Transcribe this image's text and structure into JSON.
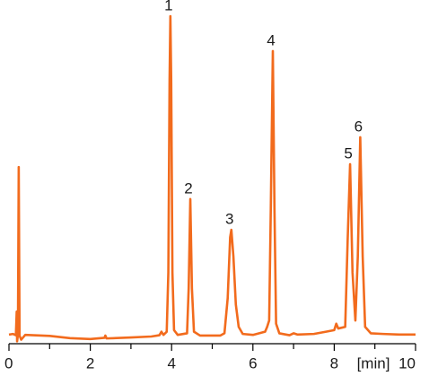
{
  "chart_data": {
    "type": "line",
    "xlabel": "[min]",
    "xlim": [
      0,
      10
    ],
    "xticks": [
      0,
      2,
      4,
      6,
      8,
      10
    ],
    "ylim": [
      -3,
      100
    ],
    "color": "#f26b1d",
    "x": [
      0,
      0.1,
      0.17,
      0.19,
      0.2,
      0.22,
      0.24,
      0.26,
      0.3,
      0.4,
      1.0,
      1.5,
      2.0,
      2.35,
      2.37,
      2.4,
      3.0,
      3.5,
      3.7,
      3.75,
      3.8,
      3.88,
      3.92,
      3.95,
      3.97,
      3.99,
      4.02,
      4.06,
      4.15,
      4.38,
      4.42,
      4.46,
      4.5,
      4.55,
      4.7,
      5.2,
      5.3,
      5.38,
      5.44,
      5.47,
      5.52,
      5.58,
      5.65,
      5.75,
      6.0,
      6.3,
      6.35,
      6.4,
      6.44,
      6.49,
      6.53,
      6.57,
      6.65,
      6.9,
      7.0,
      7.1,
      7.5,
      7.8,
      8.0,
      8.05,
      8.1,
      8.27,
      8.33,
      8.39,
      8.45,
      8.52,
      8.58,
      8.64,
      8.7,
      8.76,
      8.9,
      9.2,
      9.6,
      10
    ],
    "values": [
      0.6,
      0.8,
      0.4,
      7.8,
      -1.5,
      0.5,
      52.9,
      0.3,
      -1,
      0.5,
      0.2,
      -0.5,
      -0.8,
      -0.4,
      0.3,
      -0.6,
      -0.3,
      0,
      0.4,
      1.5,
      0.5,
      1.5,
      20,
      80,
      100,
      80,
      20,
      2,
      0.5,
      1,
      15,
      42.9,
      15,
      1.5,
      0.3,
      0.3,
      1,
      12,
      31,
      33.3,
      25,
      10,
      3,
      0.8,
      0.5,
      1.5,
      3,
      5,
      40,
      89.1,
      40,
      4,
      1,
      0.4,
      1,
      0.6,
      0.8,
      1.5,
      2,
      4,
      2.5,
      3,
      30,
      53.8,
      20,
      5,
      25,
      62.2,
      25,
      3,
      1,
      0.8,
      0.6,
      0.6
    ],
    "annotations": [
      {
        "text": "1",
        "x": 3.97
      },
      {
        "text": "2",
        "x": 4.46
      },
      {
        "text": "3",
        "x": 5.47
      },
      {
        "text": "4",
        "x": 6.49
      },
      {
        "text": "5",
        "x": 8.39
      },
      {
        "text": "6",
        "x": 8.64
      }
    ]
  }
}
